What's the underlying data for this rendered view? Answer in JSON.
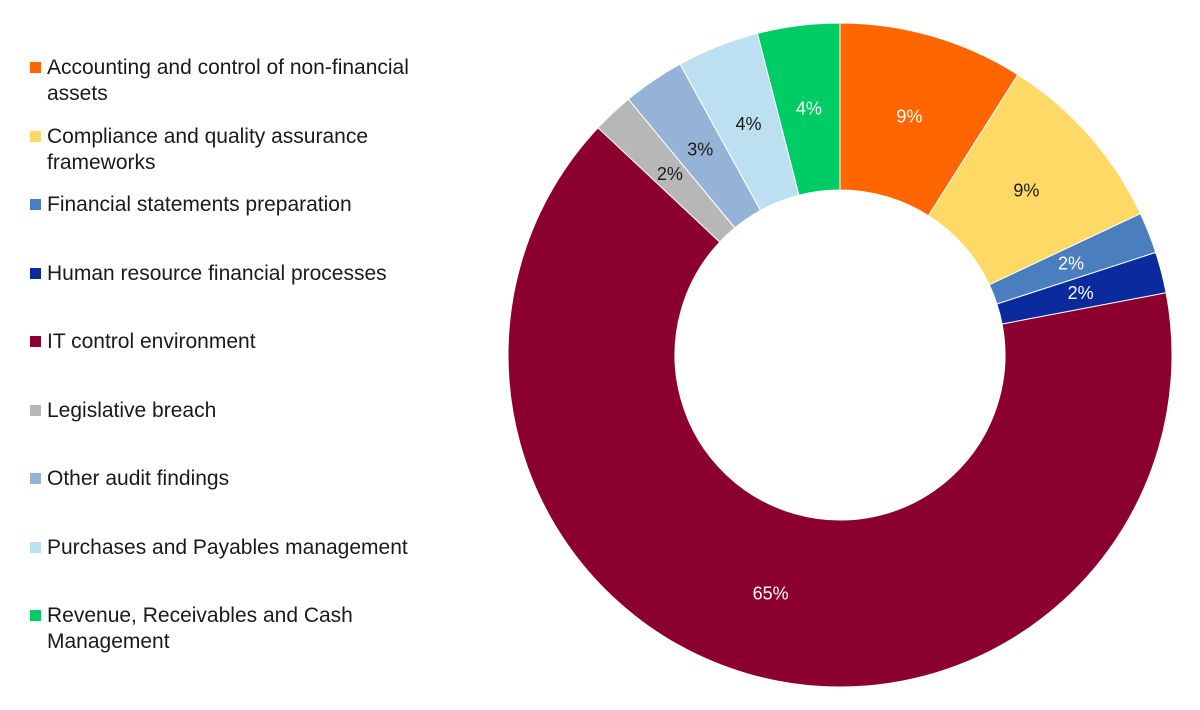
{
  "chart_data": {
    "type": "donut",
    "title": "",
    "legend_position": "left",
    "slices": [
      {
        "label": "Accounting and control of non-financial assets",
        "value": 9,
        "display": "9%",
        "color": "#ff6600",
        "label_color": "#ffffff"
      },
      {
        "label": "Compliance and quality assurance frameworks",
        "value": 9,
        "display": "9%",
        "color": "#ffd966",
        "label_color": "#1a1a1a"
      },
      {
        "label": "Financial statements preparation",
        "value": 2,
        "display": "2%",
        "color": "#4a7ebf",
        "label_color": "#ffffff"
      },
      {
        "label": "Human resource financial processes",
        "value": 2,
        "display": "2%",
        "color": "#0a2a9e",
        "label_color": "#ffffff"
      },
      {
        "label": "IT control environment",
        "value": 65,
        "display": "65%",
        "color": "#8b002e",
        "label_color": "#ffffff"
      },
      {
        "label": "Legislative breach",
        "value": 2,
        "display": "2%",
        "color": "#b7b7b7",
        "label_color": "#1a1a1a"
      },
      {
        "label": "Other audit findings",
        "value": 3,
        "display": "3%",
        "color": "#95b3d7",
        "label_color": "#1a1a1a"
      },
      {
        "label": "Purchases and Payables management",
        "value": 4,
        "display": "4%",
        "color": "#bde0f0",
        "label_color": "#1a1a1a"
      },
      {
        "label": "Revenue, Receivables and Cash Management",
        "value": 4,
        "display": "4%",
        "color": "#00cc66",
        "label_color": "#ffffff"
      }
    ]
  }
}
